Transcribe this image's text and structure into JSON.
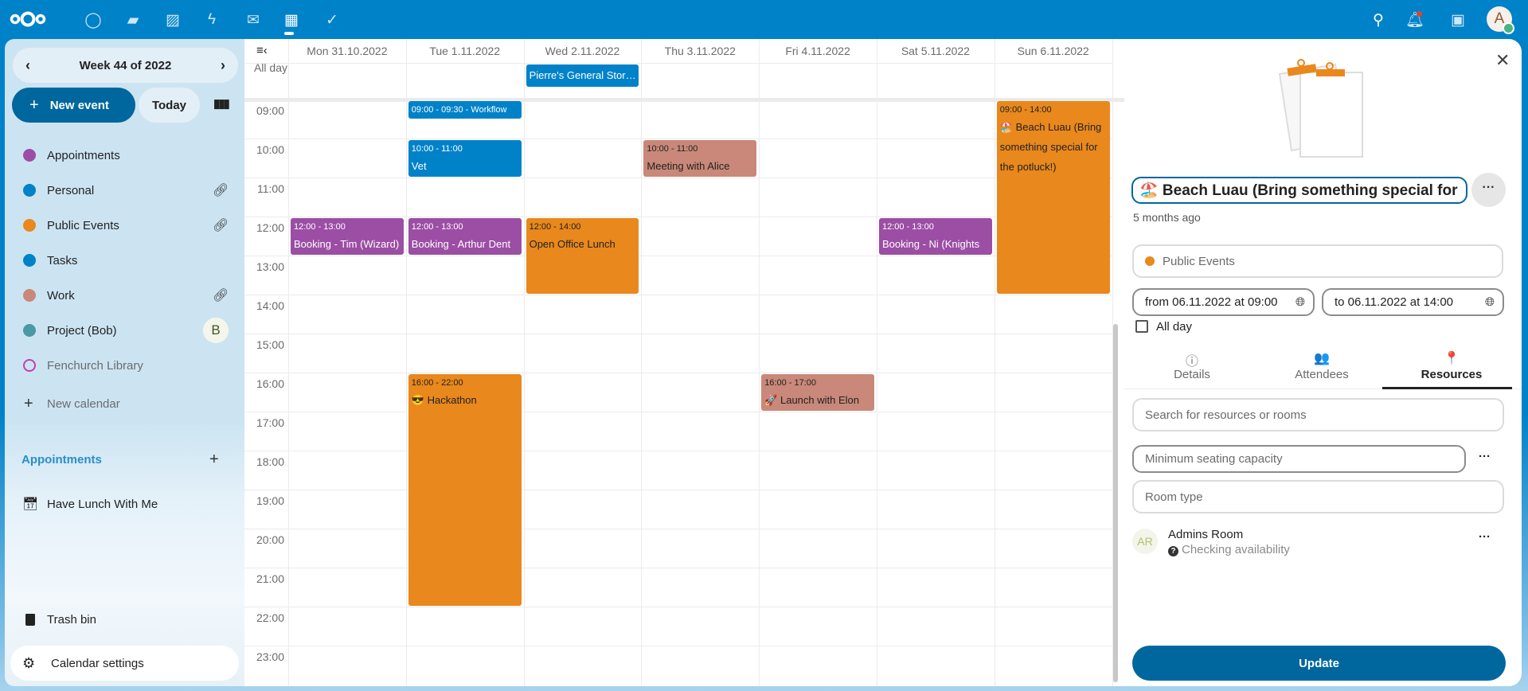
{
  "topbar": {
    "apps": [
      {
        "icon": "dashboard-icon",
        "glyph": "◯"
      },
      {
        "icon": "files-icon",
        "glyph": "▰"
      },
      {
        "icon": "photos-icon",
        "glyph": "▨"
      },
      {
        "icon": "activity-icon",
        "glyph": "ϟ"
      },
      {
        "icon": "mail-icon",
        "glyph": "✉"
      },
      {
        "icon": "calendar-icon",
        "glyph": "▦"
      },
      {
        "icon": "tasks-icon",
        "glyph": "✓"
      }
    ],
    "avatar_initial": "A",
    "accent": "#0082c9"
  },
  "sidebar": {
    "week_label": "Week 44 of 2022",
    "new_event": "New event",
    "today": "Today",
    "calendars": [
      {
        "label": "Appointments",
        "color": "#9b4ea4",
        "right": ""
      },
      {
        "label": "Personal",
        "color": "#0082c9",
        "right": "link"
      },
      {
        "label": "Public Events",
        "color": "#e9881c",
        "right": "link"
      },
      {
        "label": "Tasks",
        "color": "#0082c9",
        "right": ""
      },
      {
        "label": "Work",
        "color": "#c98879",
        "right": "link"
      },
      {
        "label": "Project (Bob)",
        "color": "#499aa2",
        "right": "B"
      },
      {
        "label": "Fenchurch Library",
        "color": "#c340ae",
        "right": "",
        "hollow": true
      }
    ],
    "new_calendar": "New calendar",
    "appointments_header": "Appointments",
    "appointment_item": "Have Lunch With Me",
    "trash": "Trash bin",
    "settings": "Calendar settings"
  },
  "calendar": {
    "all_day_label": "All day",
    "days": [
      "Mon 31.10.2022",
      "Tue 1.11.2022",
      "Wed 2.11.2022",
      "Thu 3.11.2022",
      "Fri 4.11.2022",
      "Sat 5.11.2022",
      "Sun 6.11.2022"
    ],
    "hours": [
      "09:00",
      "10:00",
      "11:00",
      "12:00",
      "13:00",
      "14:00",
      "15:00",
      "16:00",
      "17:00",
      "18:00",
      "19:00",
      "20:00",
      "21:00",
      "22:00",
      "23:00"
    ],
    "all_day_events": [
      {
        "day": 2,
        "title": "Pierre's General Stor…",
        "color": "#0082c9",
        "text": "#fff"
      }
    ],
    "events": [
      {
        "day": 1,
        "start": "09:00",
        "end": "09:30",
        "time": "09:00 - 09:30 - Workflow",
        "title": "",
        "color": "#0082c9",
        "text": "#fff"
      },
      {
        "day": 1,
        "start": "10:00",
        "end": "11:00",
        "time": "10:00 - 11:00",
        "title": "Vet",
        "color": "#0082c9",
        "text": "#fff"
      },
      {
        "day": 3,
        "start": "10:00",
        "end": "11:00",
        "time": "10:00 - 11:00",
        "title": "Meeting with Alice",
        "color": "#c98879",
        "text": "#222"
      },
      {
        "day": 0,
        "start": "12:00",
        "end": "13:00",
        "time": "12:00 - 13:00",
        "title": "Booking - Tim (Wizard)",
        "color": "#9b4ea4",
        "text": "#fff"
      },
      {
        "day": 1,
        "start": "12:00",
        "end": "13:00",
        "time": "12:00 - 13:00",
        "title": "Booking - Arthur Dent",
        "color": "#9b4ea4",
        "text": "#fff"
      },
      {
        "day": 2,
        "start": "12:00",
        "end": "14:00",
        "time": "12:00 - 14:00",
        "title": "Open Office Lunch",
        "color": "#e9881c",
        "text": "#222"
      },
      {
        "day": 5,
        "start": "12:00",
        "end": "13:00",
        "time": "12:00 - 13:00",
        "title": "Booking - Ni (Knights",
        "color": "#9b4ea4",
        "text": "#fff"
      },
      {
        "day": 6,
        "start": "09:00",
        "end": "14:00",
        "time": "09:00 - 14:00",
        "title": "🏖️ Beach Luau (Bring something special for the potluck!)",
        "color": "#e9881c",
        "text": "#222"
      },
      {
        "day": 1,
        "start": "16:00",
        "end": "22:00",
        "time": "16:00 - 22:00",
        "title": "😎 Hackathon",
        "color": "#e9881c",
        "text": "#222"
      },
      {
        "day": 4,
        "start": "16:00",
        "end": "17:00",
        "time": "16:00 - 17:00",
        "title": "🚀 Launch with Elon",
        "color": "#c98879",
        "text": "#222"
      }
    ]
  },
  "panel": {
    "title_value": "🏖️ Beach Luau (Bring something special for",
    "modified": "5 months ago",
    "calendar": "Public Events",
    "calendar_color": "#e9881c",
    "from": "from 06.11.2022 at 09:00",
    "to": "to 06.11.2022 at 14:00",
    "all_day": "All day",
    "tabs": [
      {
        "label": "Details",
        "icon": "info-icon",
        "glyph": "ⓘ"
      },
      {
        "label": "Attendees",
        "icon": "people-icon",
        "glyph": "👥"
      },
      {
        "label": "Resources",
        "icon": "map-marker-icon",
        "glyph": "📍",
        "active": true
      }
    ],
    "search_placeholder": "Search for resources or rooms",
    "capacity_placeholder": "Minimum seating capacity",
    "room_type_placeholder": "Room type",
    "resource": {
      "initials": "AR",
      "name": "Admins Room",
      "status": "Checking availability"
    },
    "update": "Update"
  }
}
